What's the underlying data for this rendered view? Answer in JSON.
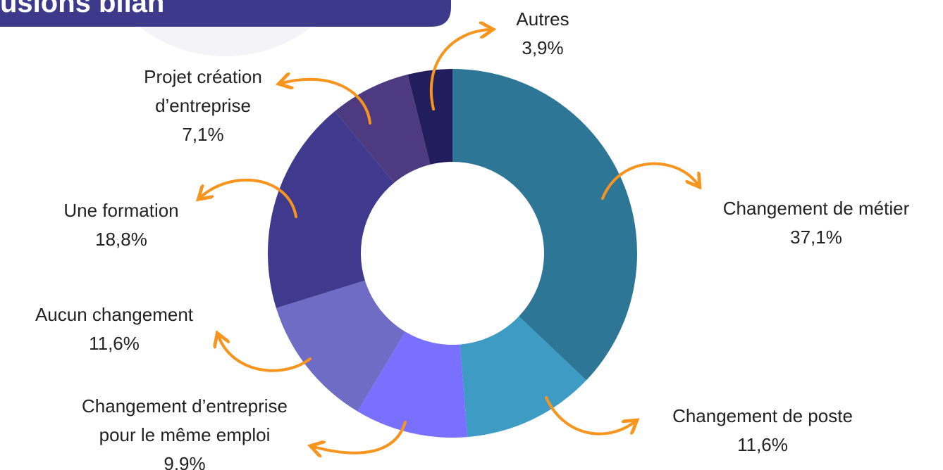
{
  "header": {
    "title": "usions bilan"
  },
  "chart_data": {
    "type": "donut",
    "categories": [
      "Changement de métier",
      "Changement de poste",
      "Changement  d’entreprise pour le même emploi",
      "Aucun changement",
      "Une formation",
      "Projet création d’entreprise",
      "Autres"
    ],
    "values": [
      37.1,
      11.6,
      9.9,
      11.6,
      18.8,
      7.1,
      3.9
    ],
    "value_labels": [
      "37,1%",
      "11,6%",
      "9,9%",
      "11,6%",
      "18,8%",
      "7,1%",
      "3,9%"
    ],
    "colors": [
      "#2e7696",
      "#3e9bc4",
      "#7a70ff",
      "#6e6cc4",
      "#3f3a8e",
      "#4e3a80",
      "#221e5e"
    ]
  }
}
